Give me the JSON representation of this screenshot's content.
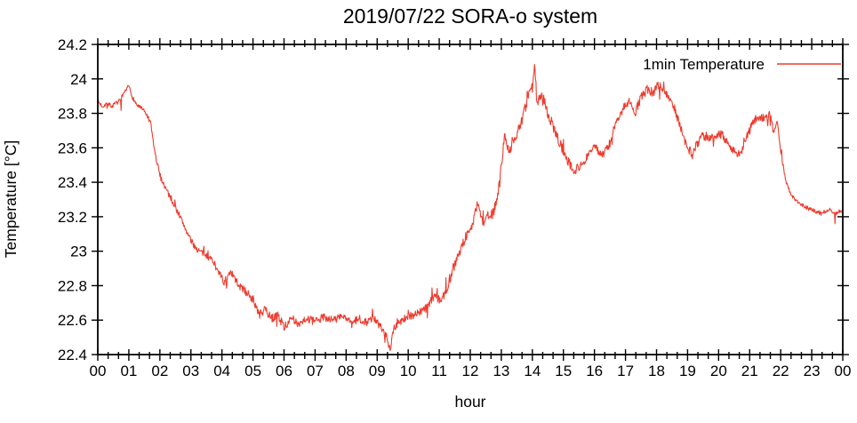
{
  "title": "2019/07/22 SORA-o system",
  "legend": {
    "label": "1min Temperature",
    "color": "#ee3b2e",
    "position": "top-right"
  },
  "axes": {
    "x": {
      "label": "hour",
      "tick_labels": [
        "00",
        "01",
        "02",
        "03",
        "04",
        "05",
        "06",
        "07",
        "08",
        "09",
        "10",
        "11",
        "12",
        "13",
        "14",
        "15",
        "16",
        "17",
        "18",
        "19",
        "20",
        "21",
        "22",
        "23",
        "00"
      ],
      "minor_ticks_per_interval": 2
    },
    "y": {
      "label": "Temperature [°C]",
      "tick_labels": [
        "22.4",
        "22.6",
        "22.8",
        "23",
        "23.2",
        "23.4",
        "23.6",
        "23.8",
        "24",
        "24.2"
      ],
      "tick_values": [
        22.4,
        22.6,
        22.8,
        23.0,
        23.2,
        23.4,
        23.6,
        23.8,
        24.0,
        24.2
      ]
    }
  },
  "chart_data": {
    "type": "line",
    "title": "2019/07/22 SORA-o system",
    "xlabel": "hour",
    "ylabel": "Temperature [°C]",
    "xlim": [
      0,
      24
    ],
    "ylim": [
      22.4,
      24.2
    ],
    "grid": false,
    "legend_position": "top-right",
    "x_tick_labels": [
      "00",
      "01",
      "02",
      "03",
      "04",
      "05",
      "06",
      "07",
      "08",
      "09",
      "10",
      "11",
      "12",
      "13",
      "14",
      "15",
      "16",
      "17",
      "18",
      "19",
      "20",
      "21",
      "22",
      "23",
      "00"
    ],
    "y_ticks": [
      22.4,
      22.6,
      22.8,
      23.0,
      23.2,
      23.4,
      23.6,
      23.8,
      24.0,
      24.2
    ],
    "sampling": "1 minute",
    "series": [
      {
        "name": "1min Temperature",
        "color": "#ee3b2e",
        "anchors_hour_degC": [
          [
            0.0,
            23.87
          ],
          [
            0.15,
            23.84
          ],
          [
            0.3,
            23.86
          ],
          [
            0.45,
            23.84
          ],
          [
            0.6,
            23.86
          ],
          [
            0.75,
            23.88
          ],
          [
            0.9,
            23.93
          ],
          [
            1.0,
            23.96
          ],
          [
            1.1,
            23.9
          ],
          [
            1.25,
            23.85
          ],
          [
            1.4,
            23.83
          ],
          [
            1.55,
            23.8
          ],
          [
            1.7,
            23.74
          ],
          [
            1.85,
            23.56
          ],
          [
            2.0,
            23.44
          ],
          [
            2.15,
            23.38
          ],
          [
            2.35,
            23.31
          ],
          [
            2.6,
            23.22
          ],
          [
            2.8,
            23.14
          ],
          [
            3.0,
            23.06
          ],
          [
            3.2,
            23.01
          ],
          [
            3.45,
            22.98
          ],
          [
            3.7,
            22.95
          ],
          [
            3.9,
            22.88
          ],
          [
            4.05,
            22.82
          ],
          [
            4.3,
            22.87
          ],
          [
            4.55,
            22.8
          ],
          [
            4.8,
            22.76
          ],
          [
            5.0,
            22.72
          ],
          [
            5.2,
            22.63
          ],
          [
            5.4,
            22.66
          ],
          [
            5.6,
            22.61
          ],
          [
            5.8,
            22.63
          ],
          [
            6.0,
            22.56
          ],
          [
            6.2,
            22.6
          ],
          [
            6.45,
            22.58
          ],
          [
            6.7,
            22.61
          ],
          [
            7.0,
            22.59
          ],
          [
            7.3,
            22.62
          ],
          [
            7.6,
            22.6
          ],
          [
            7.9,
            22.63
          ],
          [
            8.15,
            22.57
          ],
          [
            8.4,
            22.61
          ],
          [
            8.65,
            22.59
          ],
          [
            8.9,
            22.61
          ],
          [
            9.1,
            22.56
          ],
          [
            9.3,
            22.52
          ],
          [
            9.42,
            22.42
          ],
          [
            9.52,
            22.55
          ],
          [
            9.7,
            22.59
          ],
          [
            10.0,
            22.62
          ],
          [
            10.3,
            22.64
          ],
          [
            10.6,
            22.67
          ],
          [
            10.85,
            22.75
          ],
          [
            11.05,
            22.71
          ],
          [
            11.25,
            22.79
          ],
          [
            11.45,
            22.9
          ],
          [
            11.65,
            23.0
          ],
          [
            11.85,
            23.08
          ],
          [
            12.05,
            23.14
          ],
          [
            12.25,
            23.29
          ],
          [
            12.4,
            23.16
          ],
          [
            12.55,
            23.2
          ],
          [
            12.75,
            23.22
          ],
          [
            12.95,
            23.4
          ],
          [
            13.1,
            23.68
          ],
          [
            13.25,
            23.58
          ],
          [
            13.4,
            23.64
          ],
          [
            13.55,
            23.71
          ],
          [
            13.7,
            23.78
          ],
          [
            13.85,
            23.88
          ],
          [
            14.0,
            23.97
          ],
          [
            14.07,
            24.08
          ],
          [
            14.15,
            23.85
          ],
          [
            14.3,
            23.92
          ],
          [
            14.5,
            23.8
          ],
          [
            14.7,
            23.71
          ],
          [
            14.9,
            23.62
          ],
          [
            15.1,
            23.54
          ],
          [
            15.35,
            23.47
          ],
          [
            15.6,
            23.5
          ],
          [
            15.85,
            23.58
          ],
          [
            16.05,
            23.6
          ],
          [
            16.25,
            23.56
          ],
          [
            16.45,
            23.6
          ],
          [
            16.65,
            23.72
          ],
          [
            16.9,
            23.82
          ],
          [
            17.1,
            23.87
          ],
          [
            17.3,
            23.8
          ],
          [
            17.5,
            23.89
          ],
          [
            17.7,
            23.94
          ],
          [
            17.9,
            23.92
          ],
          [
            18.05,
            23.97
          ],
          [
            18.2,
            23.94
          ],
          [
            18.4,
            23.9
          ],
          [
            18.6,
            23.82
          ],
          [
            18.8,
            23.7
          ],
          [
            19.0,
            23.6
          ],
          [
            19.15,
            23.56
          ],
          [
            19.3,
            23.62
          ],
          [
            19.5,
            23.67
          ],
          [
            19.7,
            23.66
          ],
          [
            19.9,
            23.66
          ],
          [
            20.1,
            23.69
          ],
          [
            20.3,
            23.62
          ],
          [
            20.55,
            23.57
          ],
          [
            20.75,
            23.58
          ],
          [
            20.95,
            23.68
          ],
          [
            21.1,
            23.75
          ],
          [
            21.3,
            23.78
          ],
          [
            21.5,
            23.77
          ],
          [
            21.65,
            23.79
          ],
          [
            21.78,
            23.68
          ],
          [
            21.88,
            23.76
          ],
          [
            22.0,
            23.58
          ],
          [
            22.15,
            23.42
          ],
          [
            22.3,
            23.34
          ],
          [
            22.5,
            23.29
          ],
          [
            22.75,
            23.26
          ],
          [
            23.0,
            23.24
          ],
          [
            23.3,
            23.22
          ],
          [
            23.6,
            23.24
          ],
          [
            23.8,
            23.22
          ],
          [
            24.0,
            23.24
          ]
        ],
        "noise_profile_hour_amp_degC": [
          [
            0,
            0.012
          ],
          [
            1.6,
            0.018
          ],
          [
            4,
            0.024
          ],
          [
            11,
            0.03
          ],
          [
            15.5,
            0.026
          ],
          [
            21.9,
            0.012
          ]
        ],
        "spike_chance": 0.05,
        "spike_amplitude_degC": 0.06
      }
    ]
  }
}
